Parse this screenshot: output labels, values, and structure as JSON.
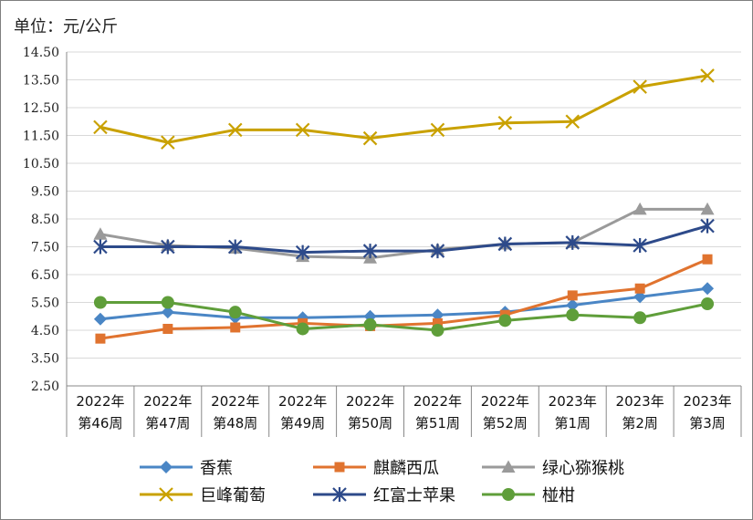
{
  "chart_data": {
    "type": "line",
    "unit_label": "单位：元/公斤",
    "categories": [
      [
        "2022年",
        "第46周"
      ],
      [
        "2022年",
        "第47周"
      ],
      [
        "2022年",
        "第48周"
      ],
      [
        "2022年",
        "第49周"
      ],
      [
        "2022年",
        "第50周"
      ],
      [
        "2022年",
        "第51周"
      ],
      [
        "2022年",
        "第52周"
      ],
      [
        "2023年",
        "第1周"
      ],
      [
        "2023年",
        "第2周"
      ],
      [
        "2023年",
        "第3周"
      ]
    ],
    "ylim": [
      2.5,
      14.5
    ],
    "y_ticks": [
      "2.50",
      "3.50",
      "4.50",
      "5.50",
      "6.50",
      "7.50",
      "8.50",
      "9.50",
      "10.50",
      "11.50",
      "12.50",
      "13.50",
      "14.50"
    ],
    "grid": true,
    "legend_position": "bottom",
    "series": [
      {
        "name": "香蕉",
        "color": "#4a86c5",
        "marker": "diamond",
        "values": [
          4.9,
          5.15,
          4.95,
          4.95,
          5.0,
          5.05,
          5.15,
          5.4,
          5.7,
          6.0
        ]
      },
      {
        "name": "麒麟西瓜",
        "color": "#e0732f",
        "marker": "square",
        "values": [
          4.2,
          4.55,
          4.6,
          4.75,
          4.65,
          4.75,
          5.05,
          5.75,
          6.0,
          7.05
        ]
      },
      {
        "name": "绿心猕猴桃",
        "color": "#9a9a9a",
        "marker": "triangle",
        "values": [
          7.95,
          7.55,
          7.45,
          7.15,
          7.1,
          7.4,
          7.6,
          7.65,
          8.85,
          8.85
        ]
      },
      {
        "name": "巨峰葡萄",
        "color": "#c9a100",
        "marker": "x",
        "values": [
          11.8,
          11.25,
          11.7,
          11.7,
          11.4,
          11.7,
          11.95,
          12.0,
          13.25,
          13.65
        ]
      },
      {
        "name": "红富士苹果",
        "color": "#2d4a8a",
        "marker": "star",
        "values": [
          7.5,
          7.5,
          7.5,
          7.3,
          7.35,
          7.35,
          7.6,
          7.65,
          7.55,
          8.25
        ]
      },
      {
        "name": "椪柑",
        "color": "#5f9e3a",
        "marker": "circle",
        "values": [
          5.5,
          5.5,
          5.15,
          4.55,
          4.7,
          4.5,
          4.85,
          5.05,
          4.95,
          5.45
        ]
      }
    ]
  }
}
